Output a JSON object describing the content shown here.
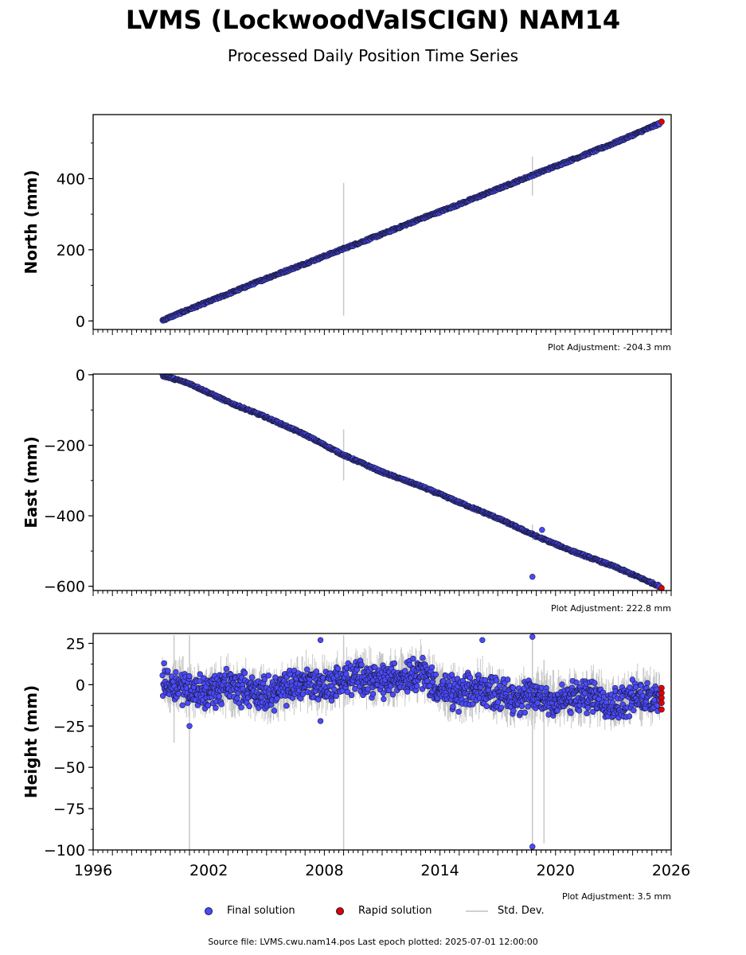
{
  "header": {
    "title": "LVMS (LockwoodValSCIGN) NAM14",
    "subtitle": "Processed Daily Position Time Series"
  },
  "legend": {
    "final": "Final solution",
    "rapid": "Rapid solution",
    "std": "Std. Dev."
  },
  "footer": {
    "source": "Source file: LVMS.cwu.nam14.pos  Last epoch plotted: 2025-07-01 12:00:00"
  },
  "colors": {
    "final": "#4a4aff",
    "rapid": "#e00000",
    "std": "#c8c8c8",
    "edge": "#1a1a3a"
  },
  "chart_data": [
    {
      "type": "scatter",
      "ylabel": "North (mm)",
      "xlim": [
        1996,
        2026
      ],
      "ylim": [
        -24,
        580
      ],
      "yticks": [
        0,
        200,
        400
      ],
      "adjustment": "Plot Adjustment: -204.3 mm",
      "series": [
        {
          "name": "Final solution",
          "x": [
            1999.6,
            2001,
            2003,
            2005,
            2007,
            2009,
            2011,
            2013,
            2015,
            2017,
            2019,
            2021,
            2023,
            2025.4
          ],
          "y": [
            2,
            33,
            76,
            120,
            161,
            203,
            244,
            287,
            328,
            371,
            414,
            456,
            499,
            555
          ]
        },
        {
          "name": "Rapid solution",
          "x": [
            2025.5
          ],
          "y": [
            560
          ]
        }
      ],
      "outlier_bars": [
        {
          "x": 2009.0,
          "y": [
            15,
            388
          ]
        },
        {
          "x": 2018.8,
          "y": [
            352,
            462
          ]
        }
      ]
    },
    {
      "type": "scatter",
      "ylabel": "East (mm)",
      "xlim": [
        1996,
        2026
      ],
      "ylim": [
        -612,
        2
      ],
      "yticks": [
        0,
        -200,
        -400,
        -600
      ],
      "adjustment": "Plot Adjustment: 222.8 mm",
      "series": [
        {
          "name": "Final solution",
          "x": [
            1999.6,
            2001,
            2003,
            2005,
            2007,
            2009,
            2011,
            2013,
            2015,
            2017,
            2019,
            2021,
            2023,
            2025.4
          ],
          "y": [
            -2,
            -25,
            -77,
            -121,
            -170,
            -228,
            -276,
            -316,
            -362,
            -407,
            -458,
            -503,
            -543,
            -600
          ]
        },
        {
          "name": "Rapid solution",
          "x": [
            2025.5
          ],
          "y": [
            -605
          ]
        }
      ],
      "outliers": [
        {
          "x": 2018.8,
          "y": -573
        },
        {
          "x": 2019.3,
          "y": -440
        }
      ],
      "outlier_bars": [
        {
          "x": 2009.0,
          "y": [
            -300,
            -155
          ]
        },
        {
          "x": 2018.8,
          "y": [
            -470,
            -425
          ]
        }
      ]
    },
    {
      "type": "scatter",
      "ylabel": "Height (mm)",
      "xlim": [
        1996,
        2026
      ],
      "ylim": [
        -100,
        31
      ],
      "yticks": [
        25,
        0,
        -25,
        -50,
        -75,
        -100
      ],
      "adjustment": "Plot Adjustment: 3.5 mm",
      "series": [
        {
          "name": "Final solution",
          "x": [
            1999.6,
            2001,
            2002,
            2003,
            2004,
            2005,
            2006,
            2007,
            2008,
            2009,
            2010,
            2011,
            2012,
            2013,
            2014,
            2015,
            2016,
            2017,
            2018,
            2019,
            2020,
            2021,
            2022,
            2023,
            2024,
            2025.4
          ],
          "y": [
            2,
            -2,
            -5,
            0,
            -3,
            -6,
            -2,
            2,
            -1,
            3,
            5,
            2,
            5,
            8,
            -3,
            -6,
            -2,
            -5,
            -8,
            -7,
            -10,
            -8,
            -6,
            -12,
            -8,
            -6
          ]
        },
        {
          "name": "Rapid solution",
          "x": [
            2025.5,
            2025.5,
            2025.5,
            2025.5,
            2025.5
          ],
          "y": [
            -2,
            -5,
            -8,
            -11,
            -15
          ]
        }
      ],
      "outliers": [
        {
          "x": 2007.8,
          "y": 27
        },
        {
          "x": 2016.2,
          "y": 27
        },
        {
          "x": 2018.8,
          "y": 29
        },
        {
          "x": 2018.8,
          "y": -98
        },
        {
          "x": 2001.0,
          "y": -25
        },
        {
          "x": 2007.8,
          "y": -22
        }
      ],
      "outlier_bars": [
        {
          "x": 2001.0,
          "y": [
            -100,
            30
          ]
        },
        {
          "x": 2009.0,
          "y": [
            -100,
            30
          ]
        },
        {
          "x": 2018.8,
          "y": [
            -100,
            30
          ]
        },
        {
          "x": 2019.4,
          "y": [
            -96,
            15
          ]
        },
        {
          "x": 2000.2,
          "y": [
            -35,
            30
          ]
        }
      ],
      "xticks": [
        1996,
        2002,
        2008,
        2014,
        2020,
        2026
      ]
    }
  ]
}
